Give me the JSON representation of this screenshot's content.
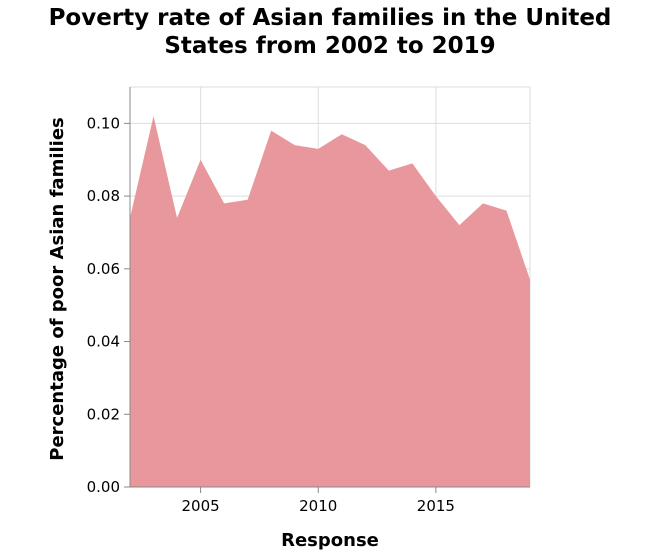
{
  "chart_data": {
    "type": "area",
    "title_lines": [
      "Poverty rate of Asian families in the United",
      "States from 2002 to 2019"
    ],
    "xlabel": "Response",
    "ylabel": "Percentage of poor Asian families",
    "x": [
      2002,
      2003,
      2004,
      2005,
      2006,
      2007,
      2008,
      2009,
      2010,
      2011,
      2012,
      2013,
      2014,
      2015,
      2016,
      2017,
      2018,
      2019
    ],
    "values": [
      0.074,
      0.102,
      0.074,
      0.09,
      0.078,
      0.079,
      0.098,
      0.094,
      0.093,
      0.097,
      0.094,
      0.087,
      0.089,
      0.08,
      0.072,
      0.078,
      0.076,
      0.057
    ],
    "xlim": [
      2002,
      2019
    ],
    "ylim": [
      0,
      0.11
    ],
    "x_ticks": [
      2005,
      2010,
      2015
    ],
    "x_tick_labels": [
      "2005",
      "2010",
      "2015"
    ],
    "y_ticks": [
      0,
      0.02,
      0.04,
      0.06,
      0.08,
      0.1
    ],
    "y_tick_labels": [
      "0.00",
      "0.02",
      "0.04",
      "0.06",
      "0.08",
      "0.10"
    ],
    "grid": true,
    "fill_color": "#e8989c",
    "grid_color": "#dddddd",
    "axis_color": "#888888"
  }
}
